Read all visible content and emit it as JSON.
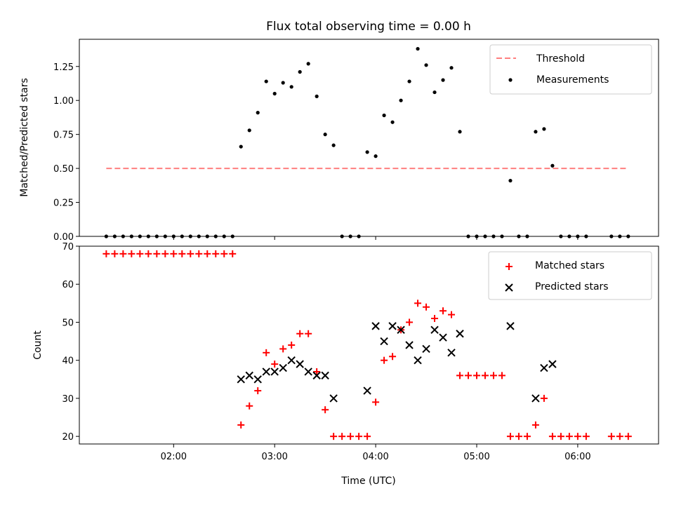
{
  "figure": {
    "title": "Flux total observing time = 0.00 h",
    "xlabel": "Time (UTC)"
  },
  "chart_data": [
    {
      "type": "scatter",
      "panel": "top",
      "title": "Flux total observing time = 0.00 h",
      "ylabel": "Matched/Predicted stars",
      "xlim": [
        "01:04",
        "06:48"
      ],
      "ylim": [
        0,
        1.45
      ],
      "yticks": [
        "0.00",
        "0.25",
        "0.50",
        "0.75",
        "1.00",
        "1.25"
      ],
      "grid": false,
      "legend_position": "top-right",
      "series": [
        {
          "name": "Threshold",
          "kind": "line",
          "style": "dashed",
          "color": "#ff7f7f",
          "points": [
            [
              "01:20",
              0.5
            ],
            [
              "06:30",
              0.5
            ]
          ]
        },
        {
          "name": "Measurements",
          "kind": "scatter",
          "color": "#000000",
          "points": [
            [
              "01:20",
              0
            ],
            [
              "01:25",
              0
            ],
            [
              "01:30",
              0
            ],
            [
              "01:35",
              0
            ],
            [
              "01:40",
              0
            ],
            [
              "01:45",
              0
            ],
            [
              "01:50",
              0
            ],
            [
              "01:55",
              0
            ],
            [
              "02:00",
              0
            ],
            [
              "02:05",
              0
            ],
            [
              "02:10",
              0
            ],
            [
              "02:15",
              0
            ],
            [
              "02:20",
              0
            ],
            [
              "02:25",
              0
            ],
            [
              "02:30",
              0
            ],
            [
              "02:35",
              0
            ],
            [
              "02:40",
              0.66
            ],
            [
              "02:45",
              0.78
            ],
            [
              "02:50",
              0.91
            ],
            [
              "02:55",
              1.14
            ],
            [
              "03:00",
              1.05
            ],
            [
              "03:05",
              1.13
            ],
            [
              "03:10",
              1.1
            ],
            [
              "03:15",
              1.21
            ],
            [
              "03:20",
              1.27
            ],
            [
              "03:25",
              1.03
            ],
            [
              "03:30",
              0.75
            ],
            [
              "03:35",
              0.67
            ],
            [
              "03:40",
              0
            ],
            [
              "03:45",
              0
            ],
            [
              "03:50",
              0
            ],
            [
              "03:55",
              0.62
            ],
            [
              "04:00",
              0.59
            ],
            [
              "04:05",
              0.89
            ],
            [
              "04:10",
              0.84
            ],
            [
              "04:15",
              1.0
            ],
            [
              "04:20",
              1.14
            ],
            [
              "04:25",
              1.38
            ],
            [
              "04:30",
              1.26
            ],
            [
              "04:35",
              1.06
            ],
            [
              "04:40",
              1.15
            ],
            [
              "04:45",
              1.24
            ],
            [
              "04:50",
              0.77
            ],
            [
              "04:55",
              0
            ],
            [
              "05:00",
              0
            ],
            [
              "05:05",
              0
            ],
            [
              "05:10",
              0
            ],
            [
              "05:15",
              0
            ],
            [
              "05:20",
              0.41
            ],
            [
              "05:25",
              0
            ],
            [
              "05:30",
              0
            ],
            [
              "05:35",
              0.77
            ],
            [
              "05:40",
              0.79
            ],
            [
              "05:45",
              0.52
            ],
            [
              "05:50",
              0
            ],
            [
              "05:55",
              0
            ],
            [
              "06:00",
              0
            ],
            [
              "06:05",
              0
            ],
            [
              "06:20",
              0
            ],
            [
              "06:25",
              0
            ],
            [
              "06:30",
              0
            ]
          ]
        }
      ]
    },
    {
      "type": "scatter",
      "panel": "bottom",
      "xlabel": "Time (UTC)",
      "ylabel": "Count",
      "xlim": [
        "01:04",
        "06:48"
      ],
      "ylim": [
        18,
        70
      ],
      "yticks": [
        "20",
        "30",
        "40",
        "50",
        "60",
        "70"
      ],
      "xticks": [
        "02:00",
        "03:00",
        "04:00",
        "05:00",
        "06:00"
      ],
      "grid": false,
      "legend_position": "top-right",
      "series": [
        {
          "name": "Matched stars",
          "marker": "plus",
          "color": "#ff0000",
          "points": [
            [
              "01:20",
              68
            ],
            [
              "01:25",
              68
            ],
            [
              "01:30",
              68
            ],
            [
              "01:35",
              68
            ],
            [
              "01:40",
              68
            ],
            [
              "01:45",
              68
            ],
            [
              "01:50",
              68
            ],
            [
              "01:55",
              68
            ],
            [
              "02:00",
              68
            ],
            [
              "02:05",
              68
            ],
            [
              "02:10",
              68
            ],
            [
              "02:15",
              68
            ],
            [
              "02:20",
              68
            ],
            [
              "02:25",
              68
            ],
            [
              "02:30",
              68
            ],
            [
              "02:35",
              68
            ],
            [
              "02:40",
              23
            ],
            [
              "02:45",
              28
            ],
            [
              "02:50",
              32
            ],
            [
              "02:55",
              42
            ],
            [
              "03:00",
              39
            ],
            [
              "03:05",
              43
            ],
            [
              "03:10",
              44
            ],
            [
              "03:15",
              47
            ],
            [
              "03:20",
              47
            ],
            [
              "03:25",
              37
            ],
            [
              "03:30",
              27
            ],
            [
              "03:35",
              20
            ],
            [
              "03:40",
              20
            ],
            [
              "03:45",
              20
            ],
            [
              "03:50",
              20
            ],
            [
              "03:55",
              20
            ],
            [
              "04:00",
              29
            ],
            [
              "04:05",
              40
            ],
            [
              "04:10",
              41
            ],
            [
              "04:15",
              48
            ],
            [
              "04:20",
              50
            ],
            [
              "04:25",
              55
            ],
            [
              "04:30",
              54
            ],
            [
              "04:35",
              51
            ],
            [
              "04:40",
              53
            ],
            [
              "04:45",
              52
            ],
            [
              "04:50",
              36
            ],
            [
              "04:55",
              36
            ],
            [
              "05:00",
              36
            ],
            [
              "05:05",
              36
            ],
            [
              "05:10",
              36
            ],
            [
              "05:15",
              36
            ],
            [
              "05:20",
              20
            ],
            [
              "05:25",
              20
            ],
            [
              "05:30",
              20
            ],
            [
              "05:35",
              23
            ],
            [
              "05:40",
              30
            ],
            [
              "05:45",
              20
            ],
            [
              "05:50",
              20
            ],
            [
              "05:55",
              20
            ],
            [
              "06:00",
              20
            ],
            [
              "06:05",
              20
            ],
            [
              "06:20",
              20
            ],
            [
              "06:25",
              20
            ],
            [
              "06:30",
              20
            ]
          ]
        },
        {
          "name": "Predicted stars",
          "marker": "x",
          "color": "#000000",
          "points": [
            [
              "02:40",
              35
            ],
            [
              "02:45",
              36
            ],
            [
              "02:50",
              35
            ],
            [
              "02:55",
              37
            ],
            [
              "03:00",
              37
            ],
            [
              "03:05",
              38
            ],
            [
              "03:10",
              40
            ],
            [
              "03:15",
              39
            ],
            [
              "03:20",
              37
            ],
            [
              "03:25",
              36
            ],
            [
              "03:30",
              36
            ],
            [
              "03:35",
              30
            ],
            [
              "03:55",
              32
            ],
            [
              "04:00",
              49
            ],
            [
              "04:05",
              45
            ],
            [
              "04:10",
              49
            ],
            [
              "04:15",
              48
            ],
            [
              "04:20",
              44
            ],
            [
              "04:25",
              40
            ],
            [
              "04:30",
              43
            ],
            [
              "04:35",
              48
            ],
            [
              "04:40",
              46
            ],
            [
              "04:45",
              42
            ],
            [
              "04:50",
              47
            ],
            [
              "05:20",
              49
            ],
            [
              "05:35",
              30
            ],
            [
              "05:40",
              38
            ],
            [
              "05:45",
              39
            ]
          ]
        }
      ]
    }
  ]
}
